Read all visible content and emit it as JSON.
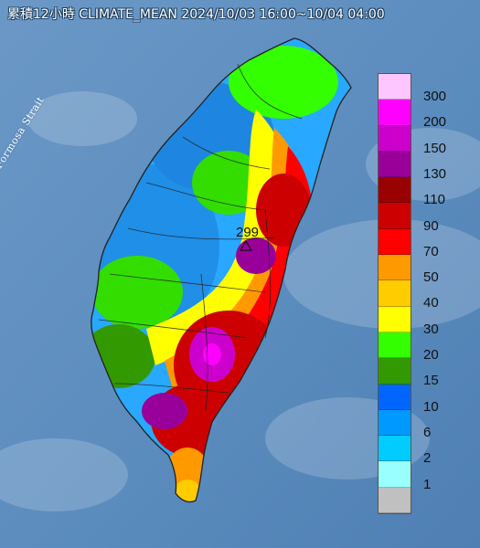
{
  "title": "累積12小時 CLIMATE_MEAN 2024/10/03 16:00~10/04 04:00",
  "sea_label": "Formosa Strait",
  "max_value_label": "299",
  "colors": {
    "sea": "#5d8dbf",
    "land_deep": "#2a2a2a"
  },
  "legend": {
    "items": [
      {
        "label": "300",
        "color": "#fdc6ff"
      },
      {
        "label": "200",
        "color": "#ff00ff"
      },
      {
        "label": "150",
        "color": "#cc00cc"
      },
      {
        "label": "130",
        "color": "#990099"
      },
      {
        "label": "110",
        "color": "#990000"
      },
      {
        "label": "90",
        "color": "#cc0000"
      },
      {
        "label": "70",
        "color": "#ff0000"
      },
      {
        "label": "50",
        "color": "#ff9900"
      },
      {
        "label": "40",
        "color": "#ffcc00"
      },
      {
        "label": "30",
        "color": "#ffff00"
      },
      {
        "label": "20",
        "color": "#33ff00"
      },
      {
        "label": "15",
        "color": "#339900"
      },
      {
        "label": "10",
        "color": "#0066ff"
      },
      {
        "label": "6",
        "color": "#0099ff"
      },
      {
        "label": "2",
        "color": "#00ccff"
      },
      {
        "label": "1",
        "color": "#99ffff"
      },
      {
        "label": "",
        "color": "#c0c0c0"
      }
    ]
  }
}
